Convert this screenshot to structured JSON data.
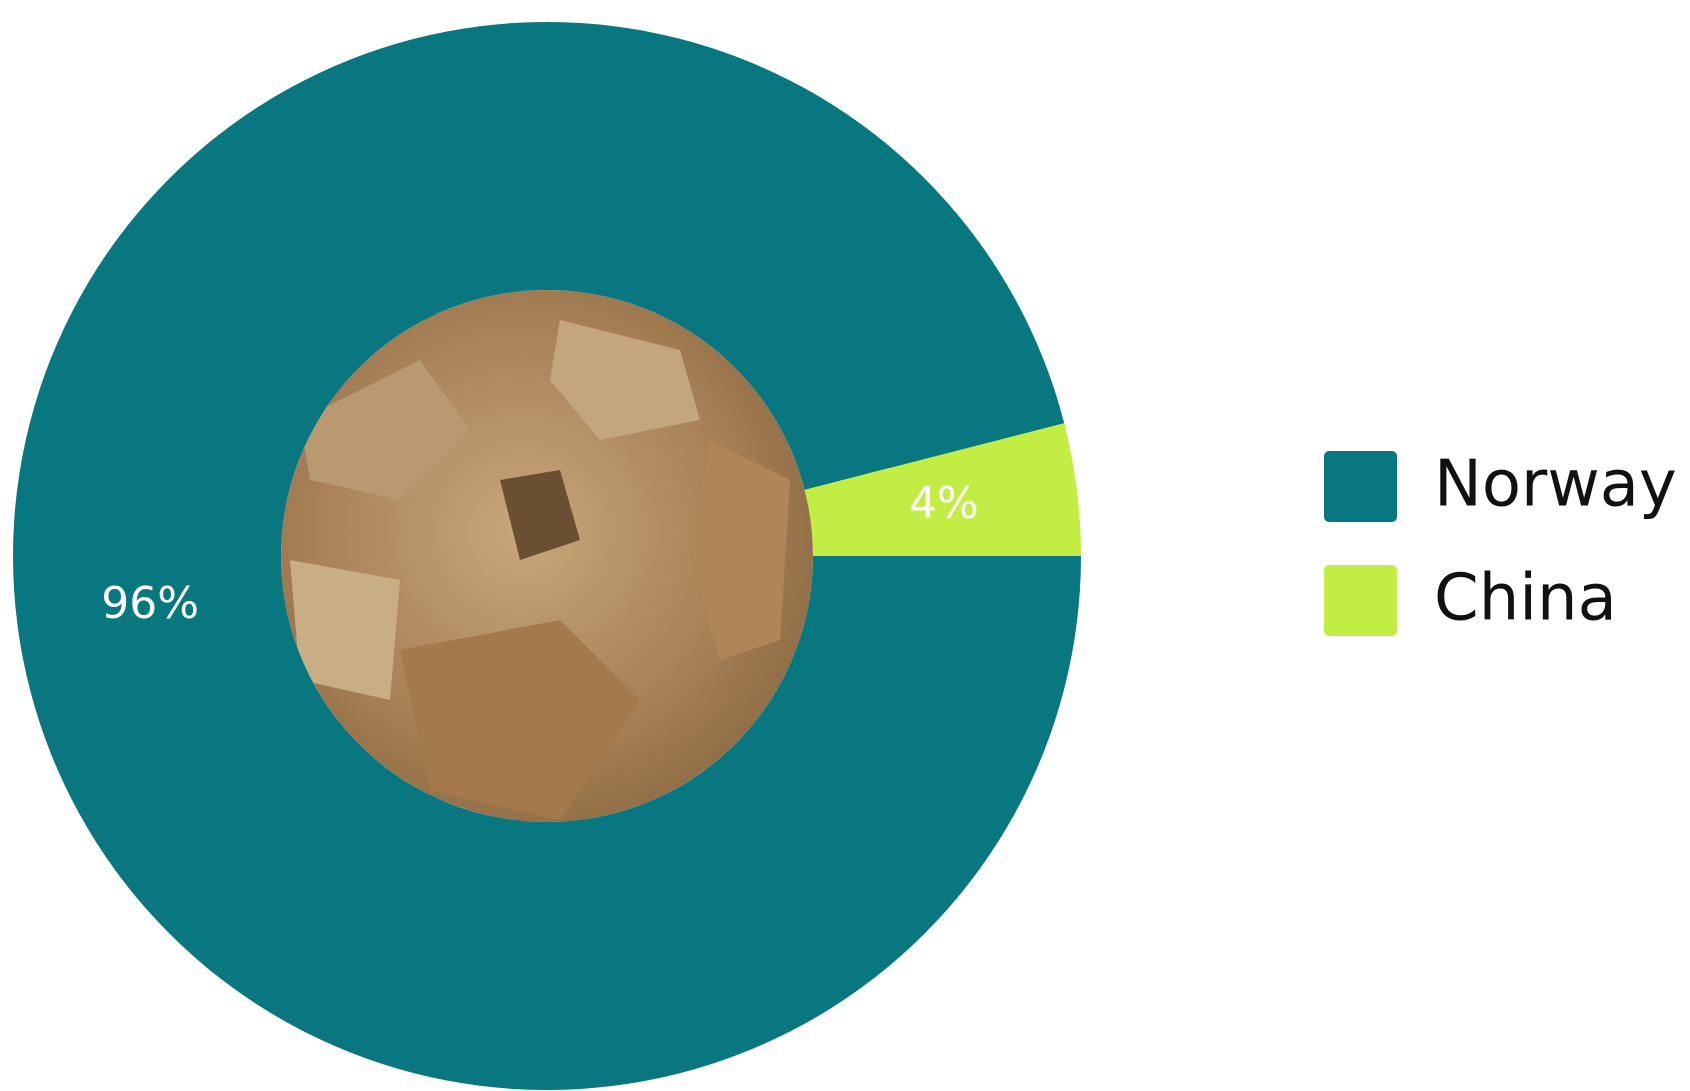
{
  "chart_data": {
    "type": "donut",
    "categories": [
      "Norway",
      "China"
    ],
    "values": [
      96,
      4
    ],
    "value_labels": [
      "96%",
      "4%"
    ],
    "colors": [
      "#08777f",
      "#c2ed44"
    ],
    "legend": "right"
  }
}
